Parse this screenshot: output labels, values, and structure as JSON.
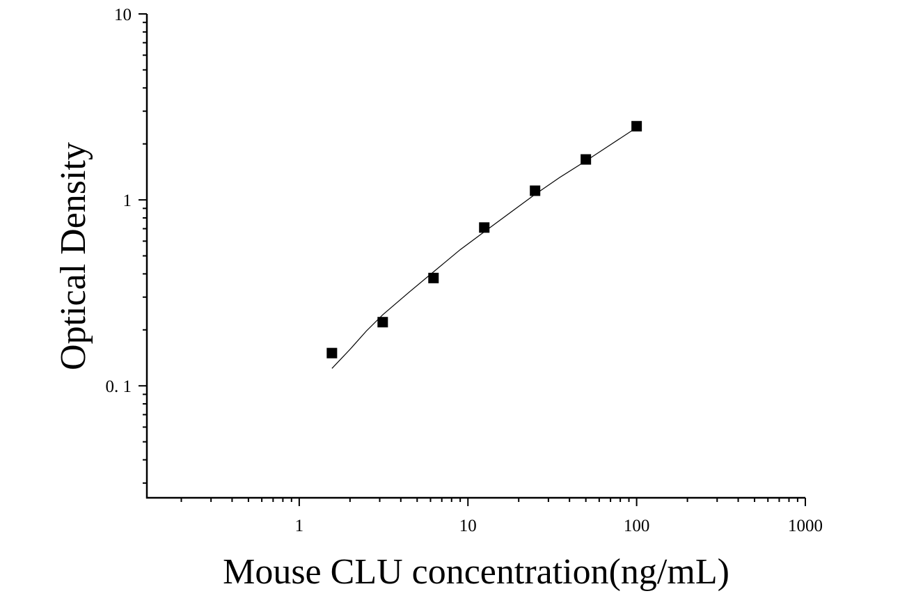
{
  "chart_data": {
    "type": "scatter",
    "x_label": "Mouse CLU concentration(ng/mL)",
    "y_label": "Optical Density",
    "xscale": "log",
    "yscale": "log",
    "xlim": [
      0.125,
      1000
    ],
    "ylim": [
      0.025,
      10
    ],
    "xticks": [
      1,
      10,
      100,
      1000
    ],
    "yticks": [
      10,
      1,
      {
        "value": 0.1,
        "label": "0. 1"
      }
    ],
    "series": [
      {
        "color": "#000000",
        "marker": "square",
        "x": [
          1.5625,
          3.125,
          6.25,
          12.5,
          25,
          50,
          100
        ],
        "values": [
          0.15,
          0.22,
          0.38,
          0.71,
          1.12,
          1.65,
          2.49
        ]
      },
      {
        "color": "#000000",
        "line": true,
        "x": [
          1.5625,
          2,
          2.5,
          3.125,
          4.5,
          6.25,
          9,
          12.5,
          18,
          25,
          35,
          50,
          70,
          100
        ],
        "values": [
          0.124,
          0.157,
          0.197,
          0.241,
          0.32,
          0.41,
          0.54,
          0.673,
          0.86,
          1.07,
          1.32,
          1.62,
          1.98,
          2.45
        ]
      }
    ]
  }
}
